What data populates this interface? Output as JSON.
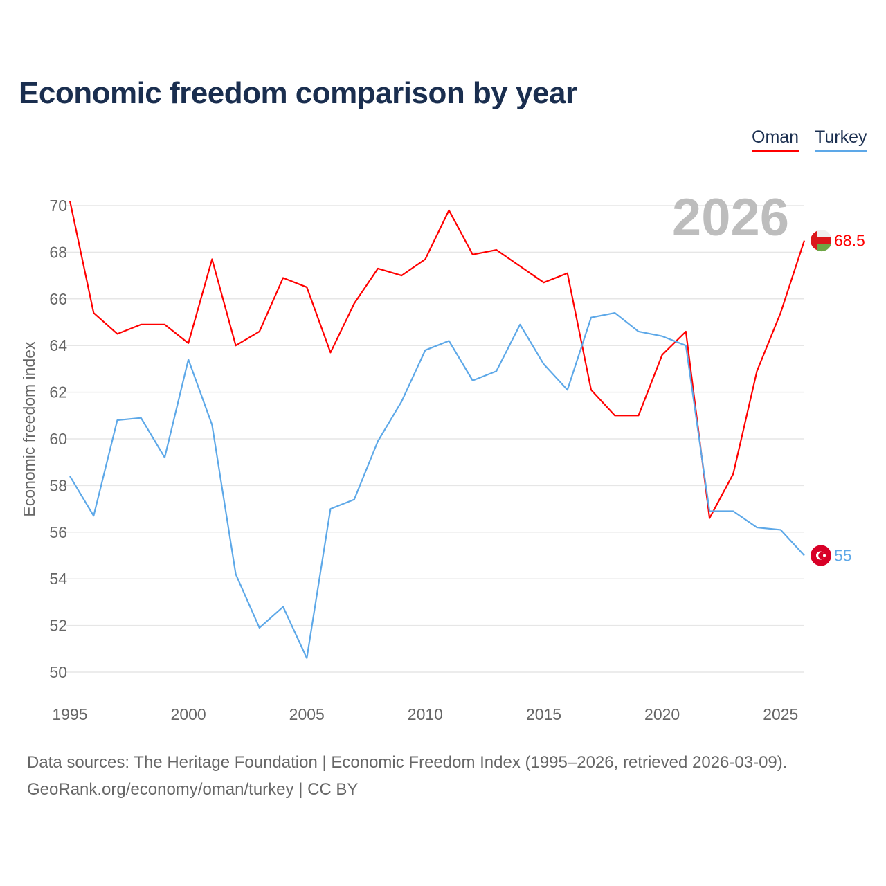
{
  "chart_data": {
    "type": "line",
    "title": "Economic freedom comparison by year",
    "xlabel": "",
    "ylabel": "Economic freedom index",
    "ylim": [
      50,
      70
    ],
    "xlim": [
      1995,
      2026
    ],
    "yticks": [
      50,
      52,
      54,
      56,
      58,
      60,
      62,
      64,
      66,
      68,
      70
    ],
    "xticks": [
      1995,
      2000,
      2005,
      2010,
      2015,
      2020,
      2025
    ],
    "grid": true,
    "legend_placement": "top-right",
    "current_year_label": "2026",
    "x": [
      1995,
      1996,
      1997,
      1998,
      1999,
      2000,
      2001,
      2002,
      2003,
      2004,
      2005,
      2006,
      2007,
      2008,
      2009,
      2010,
      2011,
      2012,
      2013,
      2014,
      2015,
      2016,
      2017,
      2018,
      2019,
      2020,
      2021,
      2022,
      2023,
      2024,
      2025,
      2026
    ],
    "series": [
      {
        "name": "Oman",
        "color": "#ff0000",
        "end_label": "68.5",
        "values": [
          70.2,
          65.4,
          64.5,
          64.9,
          64.9,
          64.1,
          67.7,
          64.0,
          64.6,
          66.9,
          66.5,
          63.7,
          65.8,
          67.3,
          67.0,
          67.7,
          69.8,
          67.9,
          68.1,
          67.4,
          66.7,
          67.1,
          62.1,
          61.0,
          61.0,
          63.6,
          64.6,
          56.6,
          58.5,
          62.9,
          65.4,
          68.5
        ]
      },
      {
        "name": "Turkey",
        "color": "#5da8e8",
        "end_label": "55",
        "values": [
          58.4,
          56.7,
          60.8,
          60.9,
          59.2,
          63.4,
          60.6,
          54.2,
          51.9,
          52.8,
          50.6,
          57.0,
          57.4,
          59.9,
          61.6,
          63.8,
          64.2,
          62.5,
          62.9,
          64.9,
          63.2,
          62.1,
          65.2,
          65.4,
          64.6,
          64.4,
          64.0,
          56.9,
          56.9,
          56.2,
          56.1,
          55.0
        ]
      }
    ]
  },
  "footer": {
    "line1": "Data sources: The Heritage Foundation | Economic Freedom Index (1995–2026, retrieved 2026-03-09).",
    "line2": "GeoRank.org/economy/oman/turkey | CC BY"
  }
}
